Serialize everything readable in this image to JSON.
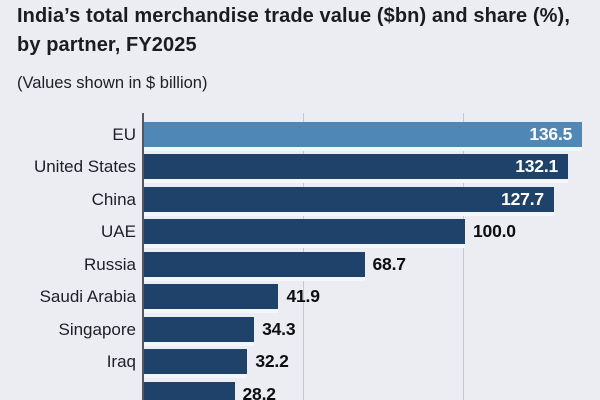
{
  "header": {
    "title": "India’s total merchandise trade value ($bn) and share (%), by partner, FY2025",
    "subtitle": "(Values shown in $ billion)"
  },
  "chart_data": {
    "type": "bar",
    "orientation": "horizontal",
    "title": "India’s total merchandise trade value ($bn) and share (%), by partner, FY2025",
    "subtitle": "(Values shown in $ billion)",
    "categories": [
      "EU",
      "United States",
      "China",
      "UAE",
      "Russia",
      "Saudi Arabia",
      "Singapore",
      "Iraq",
      ""
    ],
    "values": [
      136.5,
      132.1,
      127.7,
      100.0,
      68.7,
      41.9,
      34.3,
      32.2,
      28.2
    ],
    "display_values": [
      "136.5",
      "132.1",
      "127.7",
      "100.0",
      "68.7",
      "41.9",
      "34.3",
      "32.2",
      "28.2"
    ],
    "value_label_position": [
      "inside",
      "inside",
      "inside",
      "outside",
      "outside",
      "outside",
      "outside",
      "outside",
      "outside"
    ],
    "bar_colors": [
      "#4f88b7",
      "#1e4269",
      "#1e4269",
      "#1e4269",
      "#1e4269",
      "#1e4269",
      "#1e4269",
      "#1e4269",
      "#1e4269"
    ],
    "xlim": [
      0,
      143
    ],
    "gridlines_x": [
      50,
      100
    ],
    "grid": true,
    "legend": false,
    "note_last_bar": "ninth bar and its category label are clipped by the bottom edge of the image"
  },
  "style_colors": {
    "background": "#ecedf2",
    "bar_primary": "#1e4269",
    "bar_highlight": "#4f88b7",
    "axis_line": "#54575d",
    "gridline": "#c6c9cf",
    "value_inside": "#ffffff",
    "value_outside": "#0e0e12",
    "text": "#1b1b22"
  }
}
